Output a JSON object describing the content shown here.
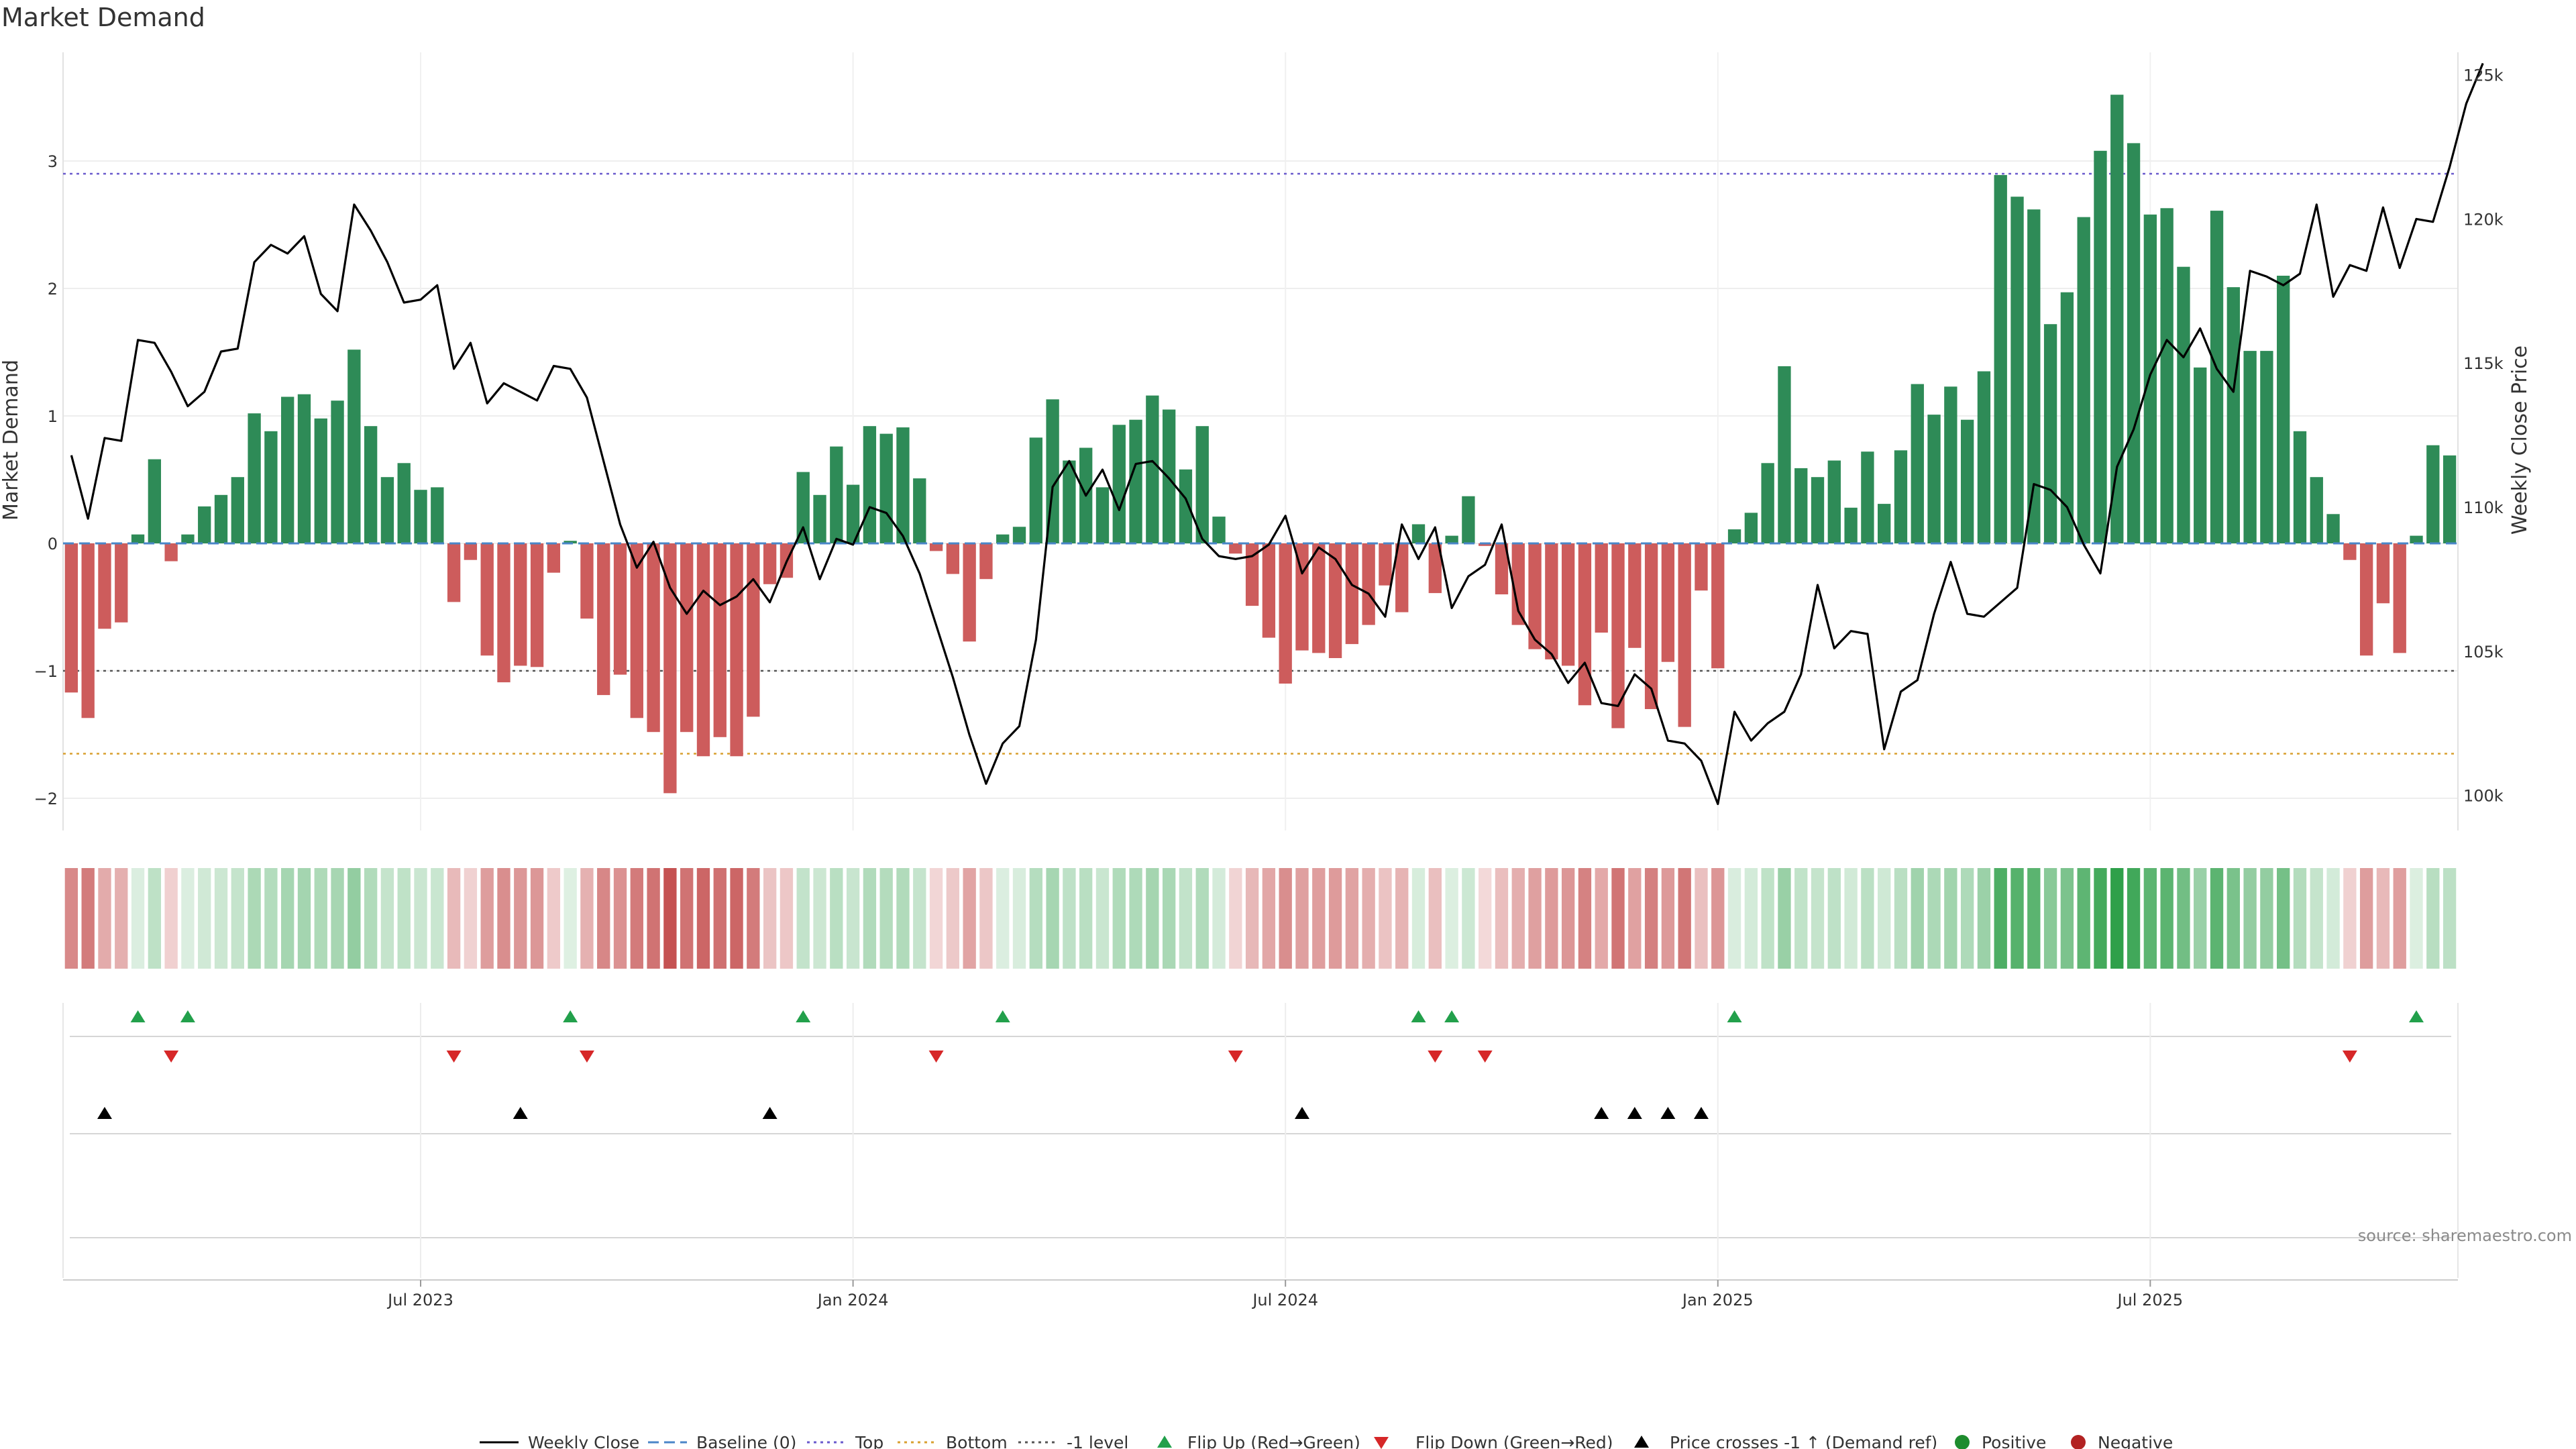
{
  "chart_data": {
    "type": "bar+line",
    "title": "Market Demand",
    "ylabel_left": "Market Demand",
    "ylabel_right": "Weekly Close Price",
    "source": "source: sharemaestro.com",
    "left_ticks": [
      "−2",
      "−1",
      "0",
      "1",
      "2",
      "3"
    ],
    "left_tick_values": [
      -2,
      -1,
      0,
      1,
      2,
      3
    ],
    "right_ticks": [
      "100k",
      "105k",
      "110k",
      "115k",
      "120k",
      "125k"
    ],
    "right_tick_values": [
      100000,
      105000,
      110000,
      115000,
      120000,
      125000
    ],
    "ylim_left": [
      -2.25,
      3.7
    ],
    "ylim_right": [
      99200,
      126200
    ],
    "x_ticks": [
      "Jul 2023",
      "Jan 2024",
      "Jul 2024",
      "Jan 2025",
      "Jul 2025"
    ],
    "x_tick_weeks": [
      21,
      47,
      73,
      99,
      125
    ],
    "reference_lines": {
      "top": 2.9,
      "bottom": -1.65,
      "minus_one": -1,
      "baseline": 0
    },
    "demand": [
      -1.17,
      -1.37,
      -0.67,
      -0.62,
      0.07,
      0.66,
      -0.14,
      0.07,
      0.29,
      0.38,
      0.52,
      1.02,
      0.88,
      1.15,
      1.17,
      0.98,
      1.12,
      1.52,
      0.92,
      0.52,
      0.63,
      0.42,
      0.44,
      -0.46,
      -0.13,
      -0.88,
      -1.09,
      -0.96,
      -0.97,
      -0.23,
      0.02,
      -0.59,
      -1.19,
      -1.03,
      -1.37,
      -1.48,
      -1.96,
      -1.48,
      -1.67,
      -1.52,
      -1.67,
      -1.36,
      -0.32,
      -0.27,
      0.56,
      0.38,
      0.76,
      0.46,
      0.92,
      0.86,
      0.91,
      0.51,
      -0.06,
      -0.24,
      -0.77,
      -0.28,
      0.07,
      0.13,
      0.83,
      1.13,
      0.65,
      0.75,
      0.44,
      0.93,
      0.97,
      1.16,
      1.05,
      0.58,
      0.92,
      0.21,
      -0.08,
      -0.49,
      -0.74,
      -1.1,
      -0.84,
      -0.86,
      -0.9,
      -0.79,
      -0.64,
      -0.33,
      -0.54,
      0.15,
      -0.39,
      0.06,
      0.37,
      -0.02,
      -0.4,
      -0.64,
      -0.83,
      -0.91,
      -0.96,
      -1.27,
      -0.7,
      -1.45,
      -0.82,
      -1.3,
      -0.93,
      -1.44,
      -0.37,
      -0.98,
      0.11,
      0.24,
      0.63,
      1.39,
      0.59,
      0.52,
      0.65,
      0.28,
      0.72,
      0.31,
      0.73,
      1.25,
      1.01,
      1.23,
      0.97,
      1.35,
      2.89,
      2.72,
      2.62,
      1.72,
      1.97,
      2.56,
      3.08,
      3.52,
      3.14,
      2.58,
      2.63,
      2.17,
      1.38,
      2.61,
      2.01,
      1.51,
      1.51,
      2.1,
      0.88,
      0.52,
      0.23,
      -0.13,
      -0.88,
      -0.47,
      -0.86,
      0.06,
      0.77,
      0.69
    ],
    "price": [
      111800,
      109600,
      112400,
      112300,
      115800,
      115700,
      114700,
      113500,
      114000,
      115400,
      115500,
      118500,
      119100,
      118800,
      119400,
      117400,
      116800,
      120500,
      119600,
      118500,
      117100,
      117200,
      117700,
      114800,
      115700,
      113600,
      114300,
      114000,
      113700,
      114900,
      114800,
      113800,
      111600,
      109400,
      107900,
      108800,
      107200,
      106300,
      107100,
      106600,
      106900,
      107500,
      106700,
      108100,
      109300,
      107500,
      108900,
      108700,
      110000,
      109800,
      109000,
      107700,
      105900,
      104100,
      102100,
      100400,
      101800,
      102400,
      105400,
      110700,
      111600,
      110400,
      111300,
      109900,
      111500,
      111600,
      111000,
      110300,
      108900,
      108300,
      108200,
      108300,
      108700,
      109700,
      107700,
      108600,
      108200,
      107300,
      107000,
      106200,
      109400,
      108200,
      109300,
      106500,
      107600,
      108000,
      109400,
      106400,
      105400,
      104900,
      103900,
      104600,
      103200,
      103100,
      104200,
      103700,
      101900,
      101800,
      101200,
      99700,
      102900,
      101900,
      102500,
      102900,
      104200,
      107300,
      105100,
      105700,
      105600,
      101600,
      103600,
      104000,
      106300,
      108100,
      106300,
      106200,
      106700,
      107200,
      110800,
      110600,
      110000,
      108700,
      107700,
      111400,
      112700,
      114600,
      115800,
      115200,
      116200,
      114800,
      114000,
      118200,
      118000,
      117700,
      118100,
      120500,
      117300,
      118400,
      118200,
      120400,
      118300,
      120000,
      119900,
      121800,
      124000,
      125400
    ],
    "legend": [
      "Weekly Close",
      "Baseline (0)",
      "Top",
      "Bottom",
      "-1 level",
      "Flip Up (Red→Green)",
      "Flip Down (Green→Red)",
      "Price crosses -1 ↑ (Demand ref)",
      "Positive",
      "Negative"
    ],
    "colors": {
      "positive": "#2e8b57",
      "negative": "#cd5c5c",
      "price": "#000000",
      "baseline": "#4a86c8",
      "top": "#6a5acd",
      "bottom": "#d9a030",
      "minus_one": "#555555",
      "flip_up": "#22a04b",
      "flip_down": "#d62728",
      "cross": "#000000",
      "positive_dot": "#1e8c2e",
      "negative_dot": "#b22222"
    }
  }
}
